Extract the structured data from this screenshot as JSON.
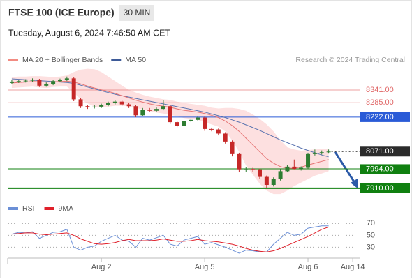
{
  "header": {
    "title": "FTSE 100 (ICE Europe)",
    "timeframe": "30 MIN",
    "date": "Tuesday, August 6, 2024 7:46:50 AM CET"
  },
  "credit": "Research © 2024 Trading Central",
  "chart_data": [
    {
      "type": "candlestick",
      "legend": [
        {
          "name": "MA 20 + Bollinger Bands",
          "color": "#f28b82"
        },
        {
          "name": "MA 50",
          "color": "#3d5a98"
        }
      ],
      "up_color": "#2e7d32",
      "down_color": "#c62828",
      "band_color": "#fde0e0",
      "ma20_color": "#e57373",
      "ma50_color": "#5b74b0",
      "xlim": [
        -0.5,
        50.5
      ],
      "ylim": [
        7873,
        8445
      ],
      "xticks": [
        {
          "value": 13,
          "label": "Aug 2"
        },
        {
          "value": 28,
          "label": "Aug 5"
        },
        {
          "value": 43,
          "label": "Aug 6"
        },
        {
          "value": 49.5,
          "label": "Aug 14"
        }
      ],
      "open": [
        8372,
        8378,
        8380,
        8382,
        8386,
        8360,
        8368,
        8380,
        8385,
        8392,
        8300,
        8270,
        8265,
        8268,
        8275,
        8283,
        8290,
        8278,
        8270,
        8230,
        8255,
        8250,
        8258,
        8270,
        8200,
        8185,
        8205,
        8210,
        8220,
        8170,
        8168,
        8150,
        8115,
        8060,
        7990,
        7995,
        7990,
        7960,
        7925,
        7950,
        7985,
        8005,
        7995,
        8000,
        8060,
        8065,
        8068
      ],
      "high": [
        8384,
        8386,
        8388,
        8392,
        8390,
        8374,
        8386,
        8391,
        8400,
        8396,
        8306,
        8276,
        8274,
        8281,
        8290,
        8296,
        8294,
        8284,
        8276,
        8262,
        8262,
        8264,
        8296,
        8276,
        8206,
        8212,
        8216,
        8228,
        8224,
        8176,
        8172,
        8156,
        8120,
        8066,
        8002,
        8000,
        7996,
        7966,
        7958,
        7992,
        8012,
        8036,
        8006,
        8066,
        8080,
        8076,
        8080
      ],
      "low": [
        8366,
        8372,
        8374,
        8376,
        8354,
        8355,
        8362,
        8375,
        8380,
        8292,
        8262,
        8258,
        8260,
        8262,
        8270,
        8278,
        8272,
        8262,
        8222,
        8226,
        8244,
        8246,
        8252,
        8192,
        8178,
        8180,
        8200,
        8204,
        8162,
        8160,
        8142,
        8106,
        8050,
        7980,
        7982,
        7980,
        7952,
        7912,
        7918,
        7944,
        7980,
        7990,
        7988,
        7996,
        8054,
        8058,
        8062
      ],
      "close": [
        8378,
        8380,
        8382,
        8386,
        8360,
        8368,
        8380,
        8385,
        8392,
        8300,
        8270,
        8265,
        8268,
        8275,
        8283,
        8290,
        8278,
        8270,
        8230,
        8255,
        8250,
        8258,
        8270,
        8200,
        8185,
        8205,
        8210,
        8220,
        8170,
        8168,
        8150,
        8115,
        8060,
        7990,
        7995,
        7990,
        7960,
        7925,
        7950,
        7985,
        8005,
        7995,
        8000,
        8060,
        8065,
        8068,
        8071
      ],
      "ma20": [
        8372,
        8374,
        8376,
        8378,
        8377,
        8376,
        8377,
        8378,
        8380,
        8376,
        8368,
        8358,
        8350,
        8342,
        8335,
        8326,
        8316,
        8306,
        8296,
        8288,
        8280,
        8274,
        8270,
        8265,
        8258,
        8252,
        8248,
        8244,
        8238,
        8230,
        8220,
        8205,
        8185,
        8160,
        8130,
        8100,
        8070,
        8040,
        8020,
        8005,
        7998,
        7998,
        8003,
        8012,
        8020,
        8028,
        8036
      ],
      "ma50": [
        8390,
        8388,
        8386,
        8384,
        8382,
        8380,
        8378,
        8376,
        8374,
        8370,
        8362,
        8354,
        8346,
        8338,
        8330,
        8322,
        8316,
        8310,
        8304,
        8298,
        8292,
        8286,
        8280,
        8274,
        8268,
        8262,
        8256,
        8250,
        8244,
        8236,
        8228,
        8220,
        8210,
        8200,
        8188,
        8176,
        8164,
        8150,
        8136,
        8122,
        8110,
        8098,
        8086,
        8076,
        8066,
        8056,
        8048
      ],
      "bb_upper": [
        8398,
        8400,
        8400,
        8402,
        8402,
        8400,
        8398,
        8400,
        8405,
        8420,
        8430,
        8434,
        8432,
        8420,
        8400,
        8380,
        8360,
        8342,
        8330,
        8320,
        8312,
        8306,
        8300,
        8298,
        8290,
        8284,
        8280,
        8276,
        8272,
        8264,
        8260,
        8262,
        8262,
        8258,
        8250,
        8234,
        8214,
        8190,
        8160,
        8120,
        8090,
        8080,
        8075,
        8078,
        8080,
        8082,
        8082
      ],
      "bb_lower": [
        8350,
        8352,
        8354,
        8356,
        8352,
        8350,
        8354,
        8356,
        8356,
        8330,
        8300,
        8282,
        8268,
        8264,
        8268,
        8272,
        8272,
        8270,
        8262,
        8256,
        8248,
        8242,
        8238,
        8232,
        8226,
        8218,
        8214,
        8210,
        8200,
        8190,
        8180,
        8160,
        8120,
        8070,
        8010,
        7970,
        7930,
        7900,
        7885,
        7885,
        7900,
        7920,
        7935,
        7950,
        7965,
        7975,
        7985
      ],
      "levels": [
        {
          "value": 8341,
          "label": "8341.00",
          "color": "#e06666",
          "boxed": false,
          "line": "solid"
        },
        {
          "value": 8285,
          "label": "8285.00",
          "color": "#e06666",
          "boxed": false,
          "line": "solid"
        },
        {
          "value": 8222,
          "label": "8222.00",
          "color": "#2a5bd7",
          "boxed": true,
          "line": "solid"
        },
        {
          "value": 8071,
          "label": "8071.00",
          "color": "#2b2b2b",
          "boxed": true,
          "line": "dotted"
        },
        {
          "value": 7994,
          "label": "7994.00",
          "color": "#108010",
          "boxed": true,
          "line": "thick"
        },
        {
          "value": 7910,
          "label": "7910.00",
          "color": "#108010",
          "boxed": true,
          "line": "thick"
        }
      ]
    },
    {
      "type": "line",
      "ylim": [
        14,
        88
      ],
      "yticks": [
        70,
        50,
        30
      ],
      "series": [
        {
          "name": "RSI",
          "color": "#6b8fd6",
          "values": [
            52,
            55,
            54,
            56,
            45,
            50,
            55,
            56,
            60,
            30,
            25,
            30,
            32,
            40,
            45,
            50,
            42,
            40,
            30,
            45,
            42,
            46,
            50,
            35,
            32,
            42,
            45,
            48,
            35,
            38,
            34,
            30,
            25,
            20,
            25,
            24,
            22,
            22,
            35,
            45,
            55,
            50,
            52,
            62,
            64,
            66,
            66
          ]
        },
        {
          "name": "9MA",
          "color": "#e0202a",
          "values": [
            52,
            53,
            54,
            54,
            52,
            51,
            52,
            53,
            54,
            50,
            44,
            40,
            36,
            35,
            36,
            38,
            41,
            43,
            41,
            41,
            41,
            42,
            44,
            42,
            40,
            40,
            41,
            43,
            41,
            40,
            39,
            37,
            35,
            32,
            28,
            25,
            23,
            22,
            24,
            28,
            33,
            38,
            43,
            48,
            54,
            60,
            64
          ]
        }
      ]
    }
  ]
}
